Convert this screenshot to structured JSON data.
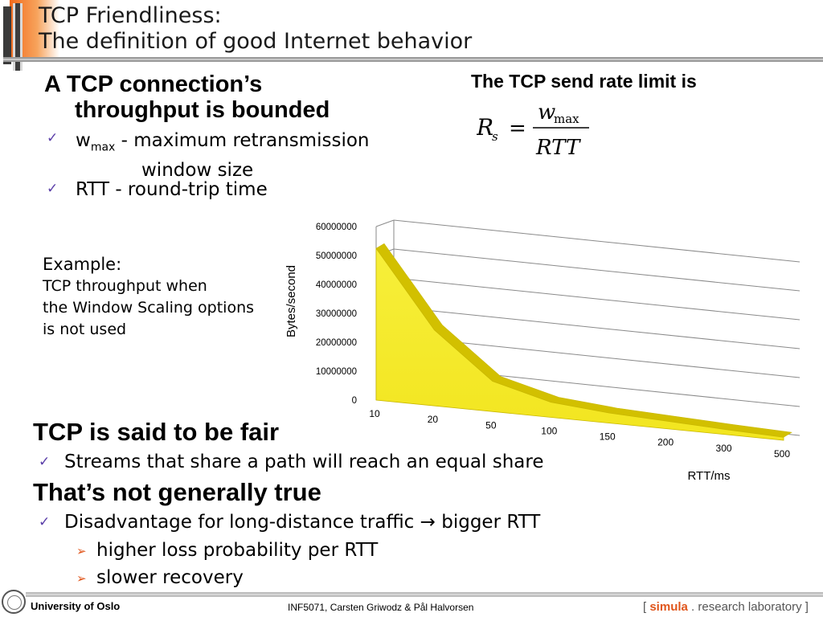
{
  "slide": {
    "title_line1": "TCP Friendliness:",
    "title_line2": "The definition of good Internet behavior"
  },
  "left": {
    "heading_line1": "A TCP connection’s",
    "heading_line2": "throughput is bounded",
    "bullet1_var": "w",
    "bullet1_sub": "max",
    "bullet1_text_line1": " - maximum retransmission",
    "bullet1_text_line2": "window size",
    "bullet2_text": "RTT - round-trip time"
  },
  "right": {
    "rate_label": "The TCP send rate limit is",
    "formula": {
      "lhs_symbol": "R",
      "lhs_sub": "s",
      "equals": "=",
      "numerator": "w",
      "numerator_sub": "max",
      "denominator": "RTT"
    }
  },
  "example": {
    "title": "Example:",
    "line1": "TCP throughput when",
    "line2": "the Window Scaling options",
    "line3": "is not used"
  },
  "chart_data": {
    "type": "area",
    "x": [
      "10",
      "20",
      "50",
      "100",
      "150",
      "200",
      "300",
      "500"
    ],
    "values": [
      52428800,
      26214400,
      10485760,
      5242880,
      3495253,
      2621440,
      1747627,
      1048576
    ],
    "xlabel": "RTT/ms",
    "ylabel": "Bytes/second",
    "ylim": [
      0,
      60000000
    ],
    "yticks": [
      "0",
      "10000000",
      "20000000",
      "30000000",
      "40000000",
      "50000000",
      "60000000"
    ],
    "grid": true,
    "style": "3d",
    "colors": {
      "fill": "#f2e51f",
      "edge": "#c9b800",
      "grid": "#8a8a8a"
    }
  },
  "fair": {
    "heading": "TCP is said to be fair",
    "bullet": "Streams that share a path will reach an equal share"
  },
  "nottrue": {
    "heading": "That’s not generally true",
    "bullet": "Disadvantage for long-distance traffic",
    "arrow": "→",
    "bullet_tail": "bigger RTT",
    "sub1": "higher loss probability per RTT",
    "sub2": "slower recovery"
  },
  "footer": {
    "university": "University of Oslo",
    "course": "INF5071, Carsten Griwodz & Pål Halvorsen",
    "lab_open": "[",
    "lab_name": "simula",
    "lab_dot": ".",
    "lab_rest": "research laboratory",
    "lab_close": "]"
  },
  "icons": {
    "check": "check-icon",
    "triangle": "triangle-bullet-icon",
    "seal": "uio-seal-icon"
  },
  "colors": {
    "accent_orange": "#e0561c",
    "check_purple": "#5a3ea8"
  }
}
